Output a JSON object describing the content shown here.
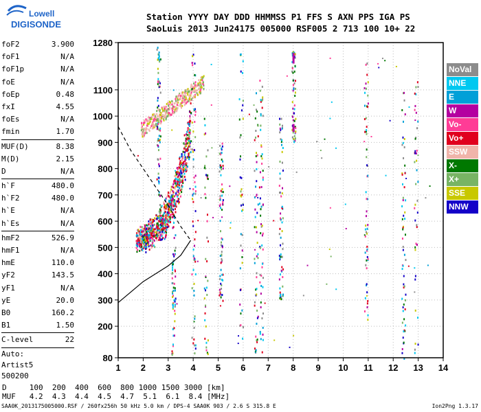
{
  "logo": {
    "line1": "Lowell",
    "line2": "DIGISONDE"
  },
  "header": {
    "labels": [
      "Station",
      "YYYY",
      "DAY",
      "DDD",
      "HHMMSS",
      "P1",
      "FFS",
      "S",
      "AXN",
      "PPS",
      "IGA",
      "PS"
    ],
    "values": [
      "SaoLuis",
      "2013",
      "Jun24",
      "175",
      "005000",
      "RSF",
      "005",
      "2",
      "713",
      "100",
      "10+",
      "22"
    ]
  },
  "params": {
    "group1": [
      {
        "k": "foF2",
        "v": "3.900"
      },
      {
        "k": "foF1",
        "v": "N/A"
      },
      {
        "k": "foF1p",
        "v": "N/A"
      },
      {
        "k": "foE",
        "v": "N/A"
      },
      {
        "k": "foEp",
        "v": "0.48"
      },
      {
        "k": "fxI",
        "v": "4.55"
      },
      {
        "k": "foEs",
        "v": "N/A"
      },
      {
        "k": "fmin",
        "v": "1.70"
      }
    ],
    "group2": [
      {
        "k": "MUF(D)",
        "v": "8.38"
      },
      {
        "k": "M(D)",
        "v": "2.15"
      },
      {
        "k": "D",
        "v": "N/A"
      }
    ],
    "group3": [
      {
        "k": "h`F",
        "v": "480.0"
      },
      {
        "k": "h`F2",
        "v": "480.0"
      },
      {
        "k": "h`E",
        "v": "N/A"
      },
      {
        "k": "h`Es",
        "v": "N/A"
      }
    ],
    "group4": [
      {
        "k": "hmF2",
        "v": "526.9"
      },
      {
        "k": "hmF1",
        "v": "N/A"
      },
      {
        "k": "hmE",
        "v": "110.0"
      },
      {
        "k": "yF2",
        "v": "143.5"
      },
      {
        "k": "yF1",
        "v": "N/A"
      },
      {
        "k": "yE",
        "v": "20.0"
      },
      {
        "k": "B0",
        "v": "160.2"
      },
      {
        "k": "B1",
        "v": "1.50"
      }
    ],
    "group5": [
      {
        "k": "C-level",
        "v": "22"
      }
    ]
  },
  "autoscaler": {
    "line1": "Auto:",
    "line2": "Artist5",
    "line3": "500200"
  },
  "legend": [
    {
      "name": "NoVal",
      "color": "#8c8c8c"
    },
    {
      "name": "NNE",
      "color": "#00c8f0"
    },
    {
      "name": "E",
      "color": "#00a0d8"
    },
    {
      "name": "W",
      "color": "#b400a0"
    },
    {
      "name": "Vo-",
      "color": "#ff3c96"
    },
    {
      "name": "Vo+",
      "color": "#e0001e"
    },
    {
      "name": "SSW",
      "color": "#f0b4aa"
    },
    {
      "name": "X-",
      "color": "#007800"
    },
    {
      "name": "X+",
      "color": "#78b464"
    },
    {
      "name": "SSE",
      "color": "#c8c800"
    },
    {
      "name": "NNW",
      "color": "#1400c8"
    }
  ],
  "dmuf": {
    "d_label": "D",
    "d_values": [
      "100",
      "200",
      "400",
      "600",
      "800",
      "1000",
      "1500",
      "3000"
    ],
    "d_unit": "[km]",
    "muf_label": "MUF",
    "muf_values": [
      "4.2",
      "4.3",
      "4.4",
      "4.5",
      "4.7",
      "5.1",
      "6.1",
      "8.4"
    ],
    "muf_unit": "[MHz]"
  },
  "footer": {
    "left": "SAA0K_2013175005000.RSF / 260fx256h 50 kHz 5.0 km / DPS-4 SAA0K 903 / 2.6 S 315.8 E",
    "right": "Ion2Png 1.3.17"
  },
  "chart_data": {
    "type": "scatter",
    "x_ticks": [
      1,
      2,
      3,
      4,
      5,
      6,
      7,
      8,
      9,
      10,
      11,
      12,
      13,
      14
    ],
    "y_ticks": [
      80,
      200,
      300,
      400,
      500,
      600,
      700,
      800,
      900,
      1000,
      1100,
      1280
    ],
    "xlim": [
      1,
      14
    ],
    "ylim": [
      80,
      1280
    ],
    "grid": true,
    "legend_position": "right",
    "traces": [
      {
        "name": "F2 O-trace",
        "x_range": [
          1.7,
          3.9
        ],
        "h_range": [
          480,
          860
        ]
      },
      {
        "name": "F2 multi-hop echo",
        "x_range": [
          1.9,
          4.4
        ],
        "h_range": [
          940,
          1140
        ]
      },
      {
        "name": "Es-like patches",
        "x_range": [
          4.2,
          13.0
        ],
        "h_range": [
          80,
          1280
        ]
      }
    ],
    "ne_profile": [
      [
        1,
        290
      ],
      [
        1.5,
        330
      ],
      [
        2,
        370
      ],
      [
        2.5,
        400
      ],
      [
        3,
        430
      ],
      [
        3.5,
        470
      ],
      [
        3.9,
        527
      ]
    ],
    "dashed_curve": [
      [
        1,
        960
      ],
      [
        1.5,
        870
      ],
      [
        2,
        800
      ],
      [
        2.5,
        730
      ],
      [
        3,
        660
      ],
      [
        3.5,
        580
      ],
      [
        3.9,
        527
      ]
    ]
  }
}
